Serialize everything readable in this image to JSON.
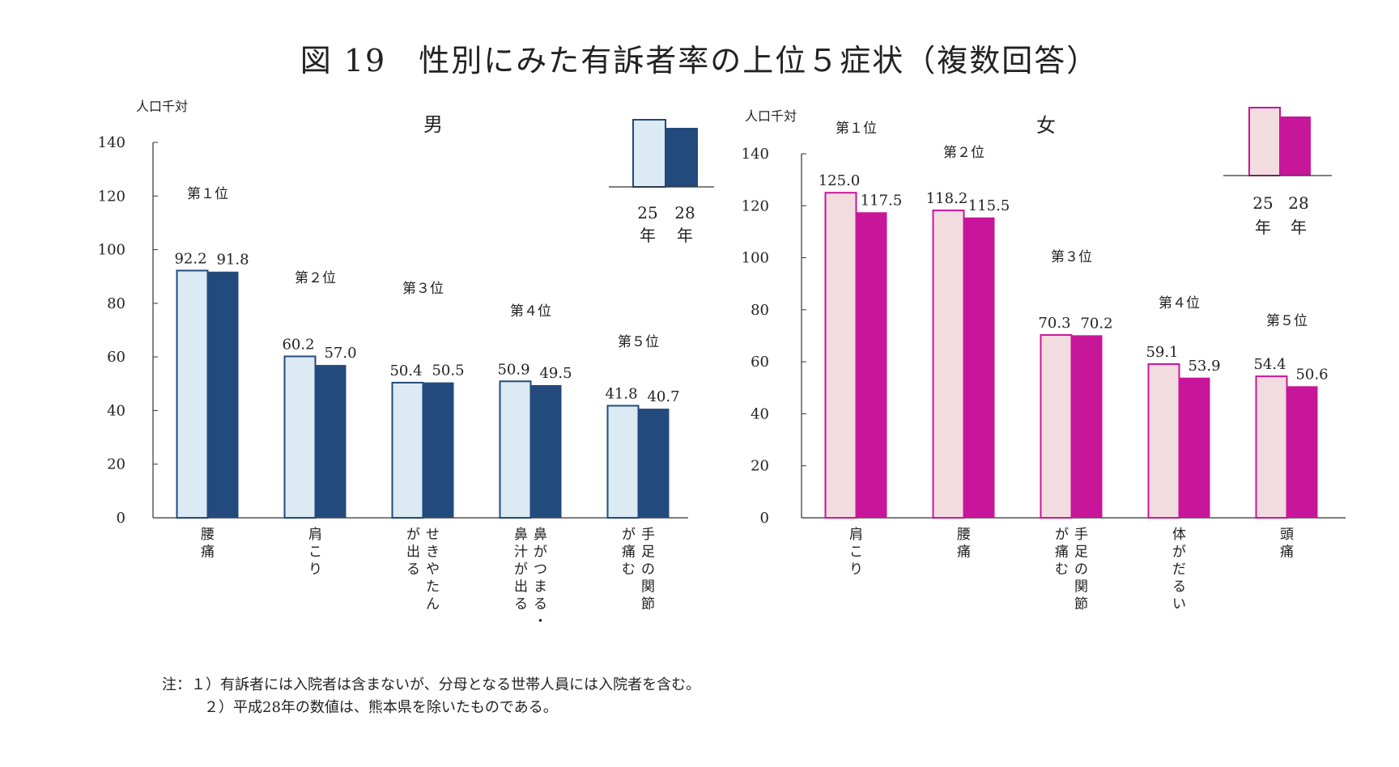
{
  "title": "図 19　性別にみた有訴者率の上位５症状（複数回答）",
  "notes": [
    "注：１）有訴者には入院者は含まないが、分母となる世帯人員には入院者を含む。",
    "２）平成28年の数値は、熊本県を除いたものである。"
  ],
  "colors": {
    "male_25": "#dbeaf3",
    "male_28": "#234a7c",
    "male_outline": "#234a7c",
    "female_25": "#f3dcdf",
    "female_28": "#c8169a",
    "female_outline": "#c8169a"
  },
  "chart_data": [
    {
      "type": "bar",
      "panel_title": "男",
      "ylabel": "人口千対",
      "ylim": [
        0,
        140
      ],
      "yticks": [
        0,
        20,
        40,
        60,
        80,
        100,
        120,
        140
      ],
      "categories": [
        "腰痛",
        "肩こり",
        "せきやたんが出る",
        "鼻がつまる・鼻汁が出る",
        "手足の関節が痛む"
      ],
      "category_columns": [
        [
          "腰痛"
        ],
        [
          "肩こり"
        ],
        [
          "せきやたん",
          "が出る"
        ],
        [
          "鼻がつまる・",
          "鼻汁が出る"
        ],
        [
          "手足の関節",
          "が痛む"
        ]
      ],
      "ranks": [
        "第１位",
        "第２位",
        "第３位",
        "第４位",
        "第５位"
      ],
      "series": [
        {
          "name": "25年",
          "values": [
            92.2,
            60.2,
            50.4,
            50.9,
            41.8
          ]
        },
        {
          "name": "28年",
          "values": [
            91.8,
            57.0,
            50.5,
            49.5,
            40.7
          ]
        }
      ],
      "value_labels": [
        [
          "92.2",
          "60.2",
          "50.4",
          "50.9",
          "41.8"
        ],
        [
          "91.8",
          "57.0",
          "50.5",
          "49.5",
          "40.7"
        ]
      ],
      "legend": {
        "labels": [
          "25",
          "28"
        ],
        "sub": [
          "年",
          "年"
        ],
        "position": "top-right"
      }
    },
    {
      "type": "bar",
      "panel_title": "女",
      "ylabel": "人口千対",
      "ylim": [
        0,
        140
      ],
      "yticks": [
        0,
        20,
        40,
        60,
        80,
        100,
        120,
        140
      ],
      "categories": [
        "肩こり",
        "腰痛",
        "手足の関節が痛む",
        "体がだるい",
        "頭痛"
      ],
      "category_columns": [
        [
          "肩こり"
        ],
        [
          "腰痛"
        ],
        [
          "手足の関節",
          "が痛む"
        ],
        [
          "体がだるい"
        ],
        [
          "頭痛"
        ]
      ],
      "ranks": [
        "第１位",
        "第２位",
        "第３位",
        "第４位",
        "第５位"
      ],
      "series": [
        {
          "name": "25年",
          "values": [
            125.0,
            118.2,
            70.3,
            59.1,
            54.4
          ]
        },
        {
          "name": "28年",
          "values": [
            117.5,
            115.5,
            70.2,
            53.9,
            50.6
          ]
        }
      ],
      "value_labels": [
        [
          "125.0",
          "118.2",
          "70.3",
          "59.1",
          "54.4"
        ],
        [
          "117.5",
          "115.5",
          "70.2",
          "53.9",
          "50.6"
        ]
      ],
      "legend": {
        "labels": [
          "25",
          "28"
        ],
        "sub": [
          "年",
          "年"
        ],
        "position": "top-right"
      }
    }
  ]
}
